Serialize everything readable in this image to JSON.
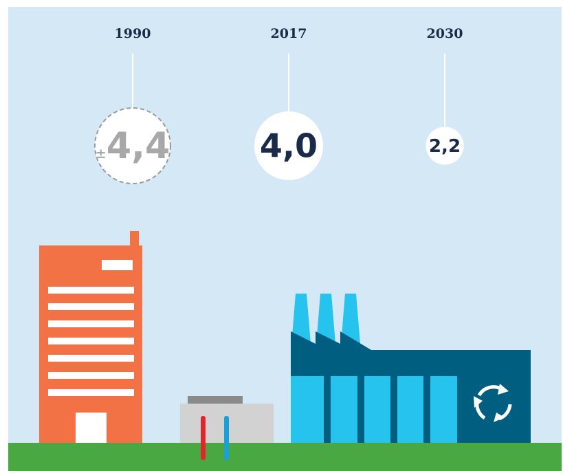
{
  "chart_data": {
    "type": "bubble",
    "categories": [
      "1990",
      "2017",
      "2030"
    ],
    "values": [
      4.4,
      4.0,
      2.2
    ],
    "value_labels": [
      "±4,4",
      "4,0",
      "2,2"
    ]
  }
}
